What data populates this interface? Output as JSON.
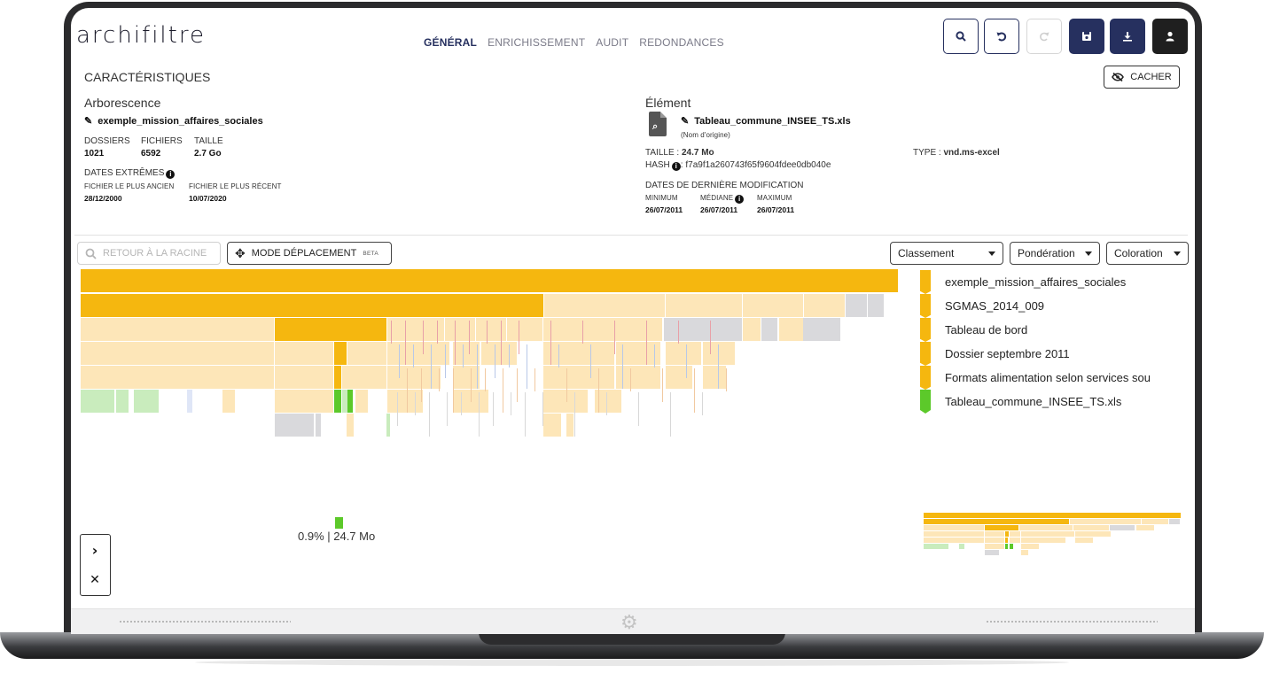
{
  "app": {
    "logo": "archifiltre",
    "tabs": [
      {
        "label": "GÉNÉRAL",
        "active": true
      },
      {
        "label": "ENRICHISSEMENT",
        "active": false
      },
      {
        "label": "AUDIT",
        "active": false
      },
      {
        "label": "REDONDANCES",
        "active": false
      }
    ],
    "header_buttons": [
      {
        "icon": "search-icon",
        "style": "outline"
      },
      {
        "icon": "undo-icon",
        "style": "outline"
      },
      {
        "icon": "redo-icon",
        "style": "disabled"
      },
      {
        "icon": "save-icon",
        "style": "navy"
      },
      {
        "icon": "download-icon",
        "style": "navy"
      },
      {
        "icon": "user-icon",
        "style": "black"
      }
    ]
  },
  "caracteristiques": {
    "title": "CARACTÉRISTIQUES",
    "cacher_label": "CACHER",
    "arborescence": {
      "title": "Arborescence",
      "name": "exemple_mission_affaires_sociales",
      "dossiers_label": "DOSSIERS",
      "dossiers_value": "1021",
      "fichiers_label": "FICHIERS",
      "fichiers_value": "6592",
      "taille_label": "TAILLE",
      "taille_value": "2.7 Go",
      "dates_label": "DATES EXTRÊMES",
      "ancien_label": "FICHIER LE PLUS ANCIEN",
      "ancien_value": "28/12/2000",
      "recent_label": "FICHIER LE PLUS RÉCENT",
      "recent_value": "10/07/2020"
    },
    "element": {
      "title": "Élément",
      "name": "Tableau_commune_INSEE_TS.xls",
      "origin_note": "(Nom d'origine)",
      "taille_label": "TAILLE : ",
      "taille_value": "24.7 Mo",
      "hash_label": "HASH",
      "hash_value": ": f7a9f1a260743f65f9604fdee0db040e",
      "type_label": "TYPE : ",
      "type_value": "vnd.ms-excel",
      "dates_label": "DATES DE DERNIÈRE MODIFICATION",
      "min_label": "MINIMUM",
      "min_value": "26/07/2011",
      "med_label": "MÉDIANE",
      "med_value": "26/07/2011",
      "max_label": "MAXIMUM",
      "max_value": "26/07/2011"
    }
  },
  "toolbar": {
    "retour_label": "RETOUR À LA RACINE",
    "mode_label": "MODE DÉPLACEMENT",
    "beta_label": "BETA",
    "classement": "Classement",
    "ponderation": "Pondération",
    "coloration": "Coloration"
  },
  "breadcrumbs": [
    {
      "label": "exemple_mission_affaires_sociales",
      "color": "#f5b70f"
    },
    {
      "label": "SGMAS_2014_009",
      "color": "#f5b70f"
    },
    {
      "label": "Tableau de bord",
      "color": "#f5b70f"
    },
    {
      "label": "Dossier septembre 2011",
      "color": "#f5b70f"
    },
    {
      "label": "Formats alimentation selon services sou",
      "color": "#f5b70f"
    },
    {
      "label": "Tableau_commune_INSEE_TS.xls",
      "color": "#5cc92a"
    }
  ],
  "selection_info": "0.9% | 24.7 Mo",
  "colors": {
    "folder_selected": "#f5b70f",
    "folder": "#fde6b8",
    "file_excel": "#5cc92a",
    "file_excel_light": "#c9ecbd",
    "other": "#d9d9dc",
    "navy": "#26305f"
  }
}
